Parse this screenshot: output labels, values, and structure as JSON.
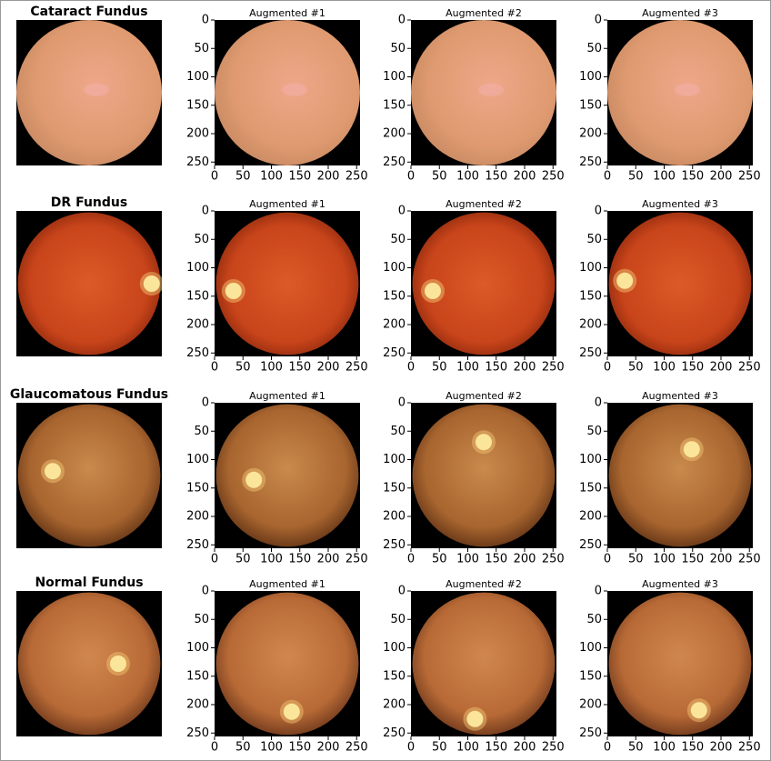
{
  "rows": [
    {
      "title": "Cataract Fundus",
      "augmented": [
        "Augmented #1",
        "Augmented #2",
        "Augmented #3"
      ]
    },
    {
      "title": "DR Fundus",
      "augmented": [
        "Augmented #1",
        "Augmented #2",
        "Augmented #3"
      ]
    },
    {
      "title": "Glaucomatous Fundus",
      "augmented": [
        "Augmented #1",
        "Augmented #2",
        "Augmented #3"
      ]
    },
    {
      "title": "Normal Fundus",
      "augmented": [
        "Augmented #1",
        "Augmented #2",
        "Augmented #3"
      ]
    }
  ],
  "axis": {
    "lim": [
      0,
      256
    ],
    "ticks": [
      0,
      50,
      100,
      150,
      200,
      250
    ]
  }
}
